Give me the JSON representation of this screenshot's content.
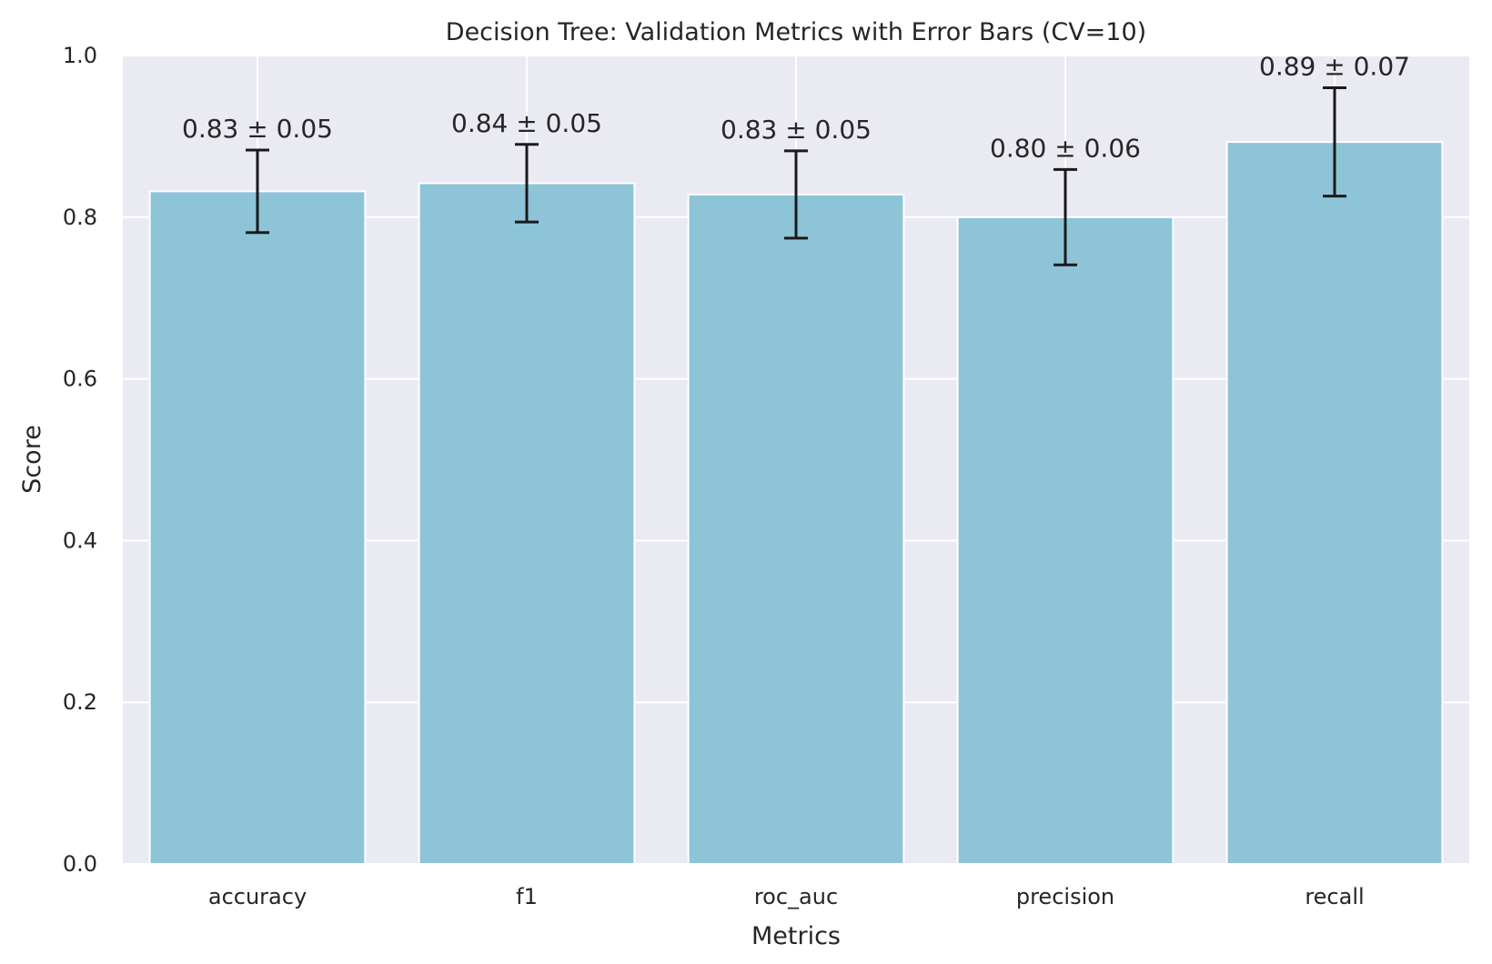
{
  "chart_data": {
    "type": "bar",
    "title": "Decision Tree: Validation Metrics with Error Bars (CV=10)",
    "xlabel": "Metrics",
    "ylabel": "Score",
    "ylim": [
      0,
      1.0
    ],
    "yticks": [
      "0.0",
      "0.2",
      "0.4",
      "0.6",
      "0.8",
      "1.0"
    ],
    "grid": true,
    "categories": [
      "accuracy",
      "f1",
      "roc_auc",
      "precision",
      "recall"
    ],
    "values": [
      0.832,
      0.842,
      0.828,
      0.8,
      0.893
    ],
    "errors": [
      0.051,
      0.048,
      0.054,
      0.059,
      0.067
    ],
    "data_labels": [
      "0.83 ± 0.05",
      "0.84 ± 0.05",
      "0.83 ± 0.05",
      "0.80 ± 0.06",
      "0.89 ± 0.07"
    ],
    "colors": {
      "bar": "#8ec4d8",
      "background": "#eaeaf2",
      "grid": "#ffffff",
      "error_bar": "#1a1a1a"
    }
  }
}
